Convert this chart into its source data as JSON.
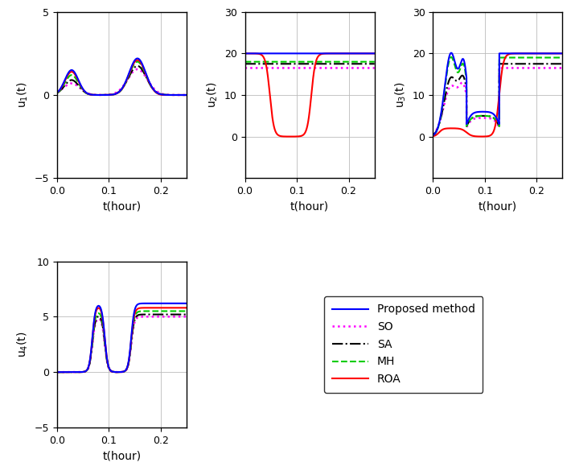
{
  "line_styles": [
    {
      "color": "#0000FF",
      "linestyle": "-",
      "linewidth": 1.5,
      "label": "Proposed method"
    },
    {
      "color": "#FF00FF",
      "linestyle": ":",
      "linewidth": 1.8,
      "label": "SO"
    },
    {
      "color": "#000000",
      "linestyle": "-.",
      "linewidth": 1.5,
      "label": "SA"
    },
    {
      "color": "#00CC00",
      "linestyle": "--",
      "linewidth": 1.5,
      "label": "MH"
    },
    {
      "color": "#FF0000",
      "linestyle": "-",
      "linewidth": 1.5,
      "label": "ROA"
    }
  ],
  "plots": {
    "u1": {
      "ylabel": "u$_1$(t)",
      "xlabel": "t(hour)",
      "ylim": [
        -5,
        5
      ],
      "xlim": [
        0,
        0.25
      ],
      "yticks": [
        -5,
        0,
        5
      ],
      "xticks": [
        0,
        0.1,
        0.2
      ]
    },
    "u2": {
      "ylabel": "u$_2$(t)",
      "xlabel": "t(hour)",
      "ylim": [
        -10,
        30
      ],
      "xlim": [
        0,
        0.25
      ],
      "yticks": [
        0,
        10,
        20,
        30
      ],
      "xticks": [
        0,
        0.1,
        0.2
      ]
    },
    "u3": {
      "ylabel": "u$_3$(t)",
      "xlabel": "t(hour)",
      "ylim": [
        -10,
        30
      ],
      "xlim": [
        0,
        0.25
      ],
      "yticks": [
        0,
        10,
        20,
        30
      ],
      "xticks": [
        0,
        0.1,
        0.2
      ]
    },
    "u4": {
      "ylabel": "u$_4$(t)",
      "xlabel": "t(hour)",
      "ylim": [
        -5,
        10
      ],
      "xlim": [
        0,
        0.25
      ],
      "yticks": [
        -5,
        0,
        5,
        10
      ],
      "xticks": [
        0,
        0.1,
        0.2
      ]
    }
  }
}
